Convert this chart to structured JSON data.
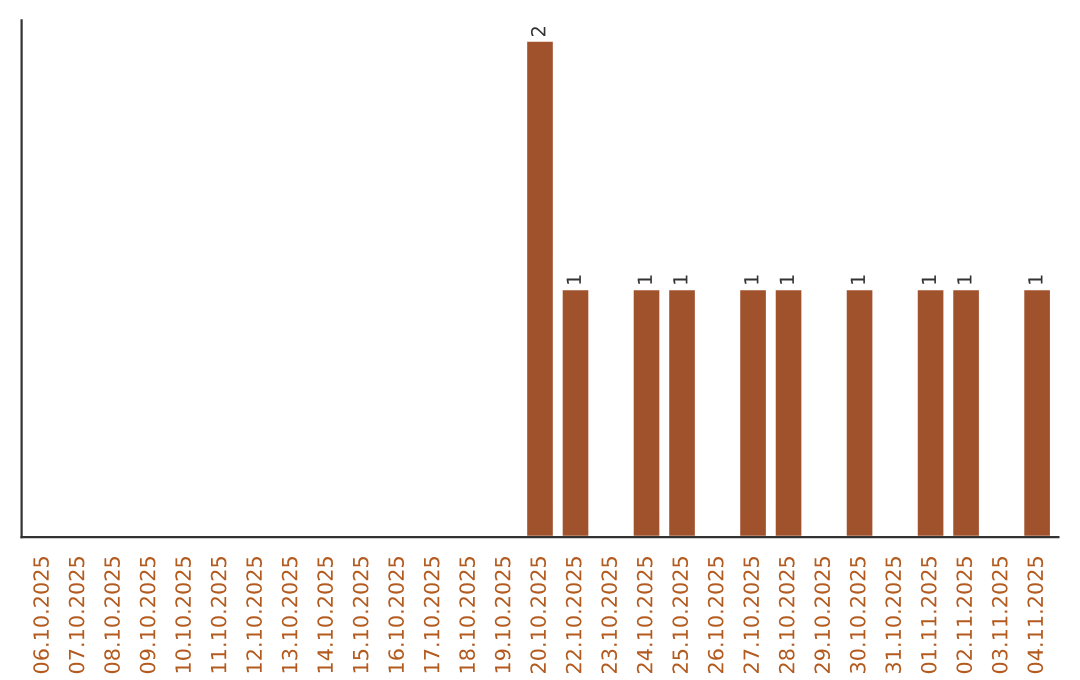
{
  "chart_data": {
    "type": "bar",
    "categories": [
      "06.10.2025",
      "07.10.2025",
      "08.10.2025",
      "09.10.2025",
      "10.10.2025",
      "11.10.2025",
      "12.10.2025",
      "13.10.2025",
      "14.10.2025",
      "15.10.2025",
      "16.10.2025",
      "17.10.2025",
      "18.10.2025",
      "19.10.2025",
      "20.10.2025",
      "22.10.2025",
      "23.10.2025",
      "24.10.2025",
      "25.10.2025",
      "26.10.2025",
      "27.10.2025",
      "28.10.2025",
      "29.10.2025",
      "30.10.2025",
      "31.10.2025",
      "01.11.2025",
      "02.11.2025",
      "03.11.2025",
      "04.11.2025"
    ],
    "values": [
      null,
      null,
      null,
      null,
      null,
      null,
      null,
      null,
      null,
      null,
      null,
      null,
      null,
      null,
      2,
      1,
      null,
      1,
      1,
      null,
      1,
      1,
      null,
      1,
      null,
      1,
      1,
      null,
      1
    ],
    "value_labels": [
      null,
      null,
      null,
      null,
      null,
      null,
      null,
      null,
      null,
      null,
      null,
      null,
      null,
      null,
      "2",
      "1",
      null,
      "1",
      "1",
      null,
      "1",
      "1",
      null,
      "1",
      null,
      "1",
      "1",
      null,
      "1"
    ],
    "color": "#a0522d",
    "ylim": [
      0,
      2.08
    ],
    "tick_labels": "x",
    "grid": false
  }
}
